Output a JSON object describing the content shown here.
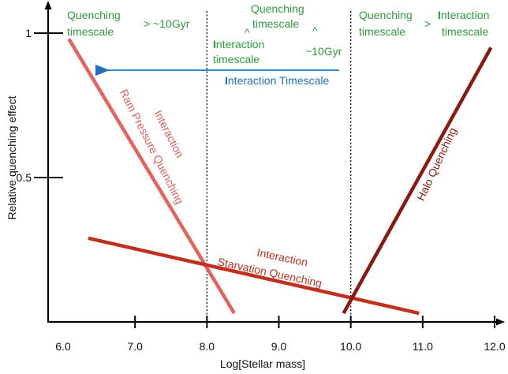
{
  "chart_data": {
    "type": "line",
    "xlabel": "Log[Stellar mass]",
    "ylabel": "Relative quenching effect",
    "xlim": [
      6.0,
      12.0
    ],
    "x_ticks": [
      "6.0",
      "7.0",
      "8.0",
      "9.0",
      "10.0",
      "11.0",
      "12.0"
    ],
    "y_ticks": [
      "0.5",
      "1"
    ],
    "y_tick_values": [
      0.5,
      1
    ],
    "ylim": [
      0,
      1.05
    ],
    "dividers_x": [
      8.0,
      10.0
    ],
    "series": [
      {
        "label_line1": "Interaction",
        "label_line2": "Ram Pressure Quenching",
        "color": "#e8625c",
        "x": [
          6.08,
          8.38
        ],
        "y": [
          0.98,
          0.03
        ]
      },
      {
        "label_line1": "Interaction",
        "label_line2": "Starvation Quenching",
        "color": "#c0301e",
        "x": [
          6.35,
          10.95
        ],
        "y": [
          0.29,
          0.03
        ]
      },
      {
        "label_line1": "Halo Quenching",
        "color": "#8a1a10",
        "x": [
          9.9,
          11.95
        ],
        "y": [
          0.03,
          0.95
        ]
      }
    ]
  },
  "regions": {
    "left": {
      "word1": "Quenching",
      "word2": "timescale",
      "relation": "> ~10Gyr"
    },
    "middle": {
      "top1": "Quenching",
      "top2": "timescale",
      "rel_top": "^",
      "bot1_initial": "I",
      "bot1_rest": "nteraction",
      "bot2": "timescale",
      "rel_bottom": "^",
      "right_value": "~10Gyr"
    },
    "right": {
      "word1": "Quenching",
      "word2": "timescale",
      "relation": ">",
      "word3_initial": "I",
      "word3_rest": "nteraction",
      "word4": "timescale"
    }
  },
  "arrow_label": {
    "initial": "I",
    "rest": "nteraction Timescale"
  },
  "colors": {
    "green": "#2e9a3e",
    "blue": "#1f6fc0"
  }
}
